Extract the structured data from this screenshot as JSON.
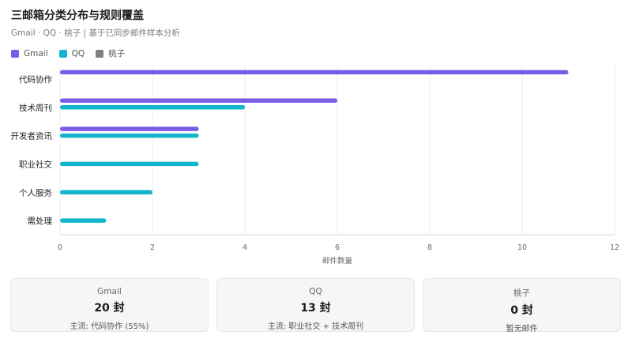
{
  "header": {
    "title": "三邮箱分类分布与规则覆盖",
    "subtitle": "Gmail · QQ · 桃子 | 基于已同步邮件样本分析"
  },
  "legend": [
    {
      "label": "Gmail",
      "color": "#7b5ce6"
    },
    {
      "label": "QQ",
      "color": "#12b5cb"
    },
    {
      "label": "桃子",
      "color": "#808080"
    }
  ],
  "chart_data": {
    "type": "bar",
    "orientation": "horizontal",
    "title": "三邮箱分类分布与规则覆盖",
    "subtitle": "Gmail · QQ · 桃子 | 基于已同步邮件样本分析",
    "xlabel": "邮件数量",
    "ylabel": "",
    "xlim": [
      0,
      12
    ],
    "xticks": [
      0,
      2,
      4,
      6,
      8,
      10,
      12
    ],
    "grid": true,
    "legend_position": "top-left",
    "categories": [
      "代码协作",
      "技术周刊",
      "开发者资讯",
      "职业社交",
      "个人服务",
      "需处理"
    ],
    "series": [
      {
        "name": "Gmail",
        "color": "#7b5ce6",
        "values": [
          11,
          6,
          3,
          0,
          0,
          0
        ]
      },
      {
        "name": "QQ",
        "color": "#12b5cb",
        "values": [
          0,
          4,
          3,
          3,
          2,
          1
        ]
      },
      {
        "name": "桃子",
        "color": "#808080",
        "values": [
          0,
          0,
          0,
          0,
          0,
          0
        ]
      }
    ]
  },
  "cards": [
    {
      "title": "Gmail",
      "value": "20 封",
      "note": "主流: 代码协作 (55%)"
    },
    {
      "title": "QQ",
      "value": "13 封",
      "note": "主流: 职业社交 + 技术周刊"
    },
    {
      "title": "桃子",
      "value": "0 封",
      "note": "暂无邮件"
    }
  ]
}
